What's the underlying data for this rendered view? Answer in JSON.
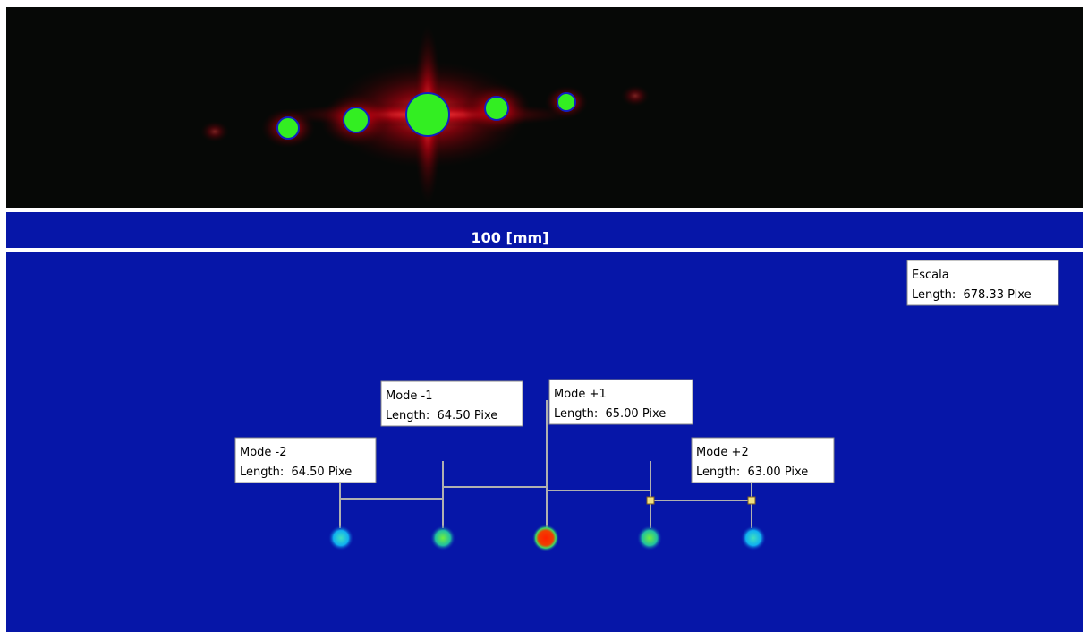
{
  "scale_bar": {
    "label": "100 [mm]"
  },
  "annotations": [
    {
      "title": "Escala",
      "length": "Length:  678.33 Pixe"
    },
    {
      "title": "Mode -1",
      "length": "Length:  64.50 Pixe"
    },
    {
      "title": "Mode +1",
      "length": "Length:  65.00 Pixe"
    },
    {
      "title": "Mode -2",
      "length": "Length:  64.50 Pixe"
    },
    {
      "title": "Mode +2",
      "length": "Length:  63.00 Pixe"
    }
  ]
}
